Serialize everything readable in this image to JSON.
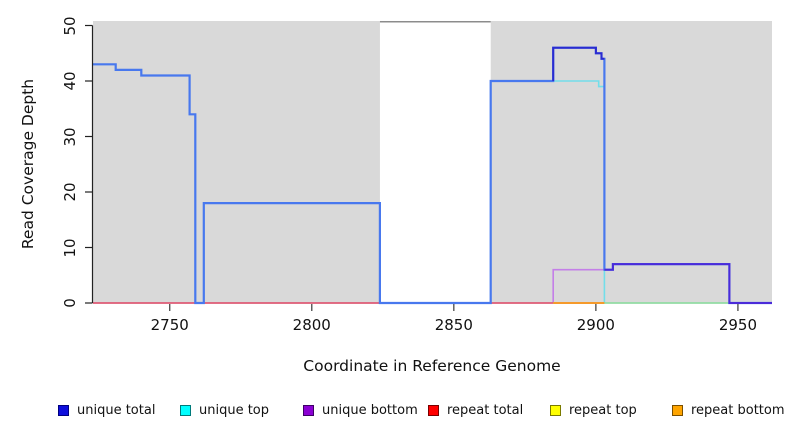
{
  "axes": {
    "x": {
      "label": "Coordinate in Reference Genome",
      "ticks": [
        2750,
        2800,
        2850,
        2900,
        2950
      ],
      "range": [
        2723,
        2962
      ]
    },
    "y": {
      "label": "Read Coverage Depth",
      "ticks": [
        0,
        10,
        20,
        30,
        40,
        50
      ],
      "range": [
        0,
        50.8
      ]
    }
  },
  "panel": {
    "bg_color": "#D9D9D9",
    "mask_band": {
      "from": 2824,
      "to": 2863,
      "color": "#FFFFFF",
      "top_border_color": "#8C8C8C"
    }
  },
  "chart_data": {
    "type": "line",
    "title": "",
    "xlabel": "Coordinate in Reference Genome",
    "ylabel": "Read Coverage Depth",
    "xlim": [
      2723,
      2962
    ],
    "ylim": [
      0,
      50.8
    ],
    "grid": false,
    "legend_position": "bottom",
    "series": [
      {
        "key": "unique_bottom",
        "name": "unique bottom",
        "line_color": "#C47FE8",
        "line_width": 1.6,
        "points": [
          [
            2723,
            0
          ],
          [
            2885,
            0
          ],
          [
            2885,
            6
          ],
          [
            2906,
            6
          ],
          [
            2906,
            7
          ],
          [
            2947,
            7
          ],
          [
            2947,
            0
          ],
          [
            2962,
            0
          ]
        ]
      },
      {
        "key": "unique_top",
        "name": "unique top",
        "line_color": "#72DEEA",
        "line_width": 1.6,
        "points": [
          [
            2723,
            43
          ],
          [
            2731,
            43
          ],
          [
            2731,
            42
          ],
          [
            2740,
            42
          ],
          [
            2740,
            41
          ],
          [
            2757,
            41
          ],
          [
            2757,
            34
          ],
          [
            2759,
            34
          ],
          [
            2759,
            0
          ],
          [
            2762,
            0
          ],
          [
            2762,
            18
          ],
          [
            2824,
            18
          ],
          [
            2824,
            0
          ],
          [
            2863,
            0
          ],
          [
            2863,
            40
          ],
          [
            2901,
            40
          ],
          [
            2901,
            39
          ],
          [
            2903,
            39
          ],
          [
            2903,
            0
          ],
          [
            2962,
            0
          ]
        ]
      },
      {
        "key": "repeat_top",
        "name": "repeat top",
        "line_color": "#98DB98",
        "line_width": 1.6,
        "points": [
          [
            2885,
            0
          ],
          [
            2947,
            0
          ]
        ]
      },
      {
        "key": "repeat_total",
        "name": "repeat total",
        "line_color": "#E25563",
        "line_width": 1.6,
        "segments": [
          [
            [
              2723,
              0
            ],
            [
              2824,
              0
            ]
          ],
          [
            [
              2863,
              0
            ],
            [
              2885,
              0
            ]
          ]
        ]
      },
      {
        "key": "repeat_bottom",
        "name": "repeat bottom",
        "line_color": "#F59A2B",
        "line_width": 2,
        "points": [
          [
            2885,
            0
          ],
          [
            2903,
            0
          ]
        ]
      },
      {
        "key": "unique_total",
        "name": "unique total",
        "line_color": "#4878EE",
        "line_width": 2.2,
        "points": [
          [
            2723,
            43
          ],
          [
            2731,
            43
          ],
          [
            2731,
            42
          ],
          [
            2740,
            42
          ],
          [
            2740,
            41
          ],
          [
            2757,
            41
          ],
          [
            2757,
            34
          ],
          [
            2759,
            34
          ],
          [
            2759,
            0
          ],
          [
            2762,
            0
          ],
          [
            2762,
            18
          ],
          [
            2824,
            18
          ],
          [
            2824,
            0
          ],
          [
            2863,
            0
          ],
          [
            2863,
            40
          ],
          [
            2885,
            40
          ],
          [
            2885,
            46
          ],
          [
            2900,
            46
          ],
          [
            2900,
            45
          ],
          [
            2902,
            45
          ],
          [
            2902,
            44
          ],
          [
            2903,
            44
          ],
          [
            2903,
            6
          ],
          [
            2906,
            6
          ],
          [
            2906,
            7
          ],
          [
            2947,
            7
          ],
          [
            2947,
            0
          ],
          [
            2962,
            0
          ]
        ],
        "overlays": [
          {
            "color": "#2B2BD0",
            "width": 2,
            "points": [
              [
                2885,
                40
              ],
              [
                2885,
                46
              ],
              [
                2900,
                46
              ],
              [
                2900,
                45
              ],
              [
                2902,
                45
              ],
              [
                2902,
                44
              ],
              [
                2903,
                44
              ]
            ]
          },
          {
            "color": "#4B2BD9",
            "width": 2,
            "points": [
              [
                2903,
                6
              ],
              [
                2906,
                6
              ],
              [
                2906,
                7
              ],
              [
                2947,
                7
              ],
              [
                2947,
                0
              ],
              [
                2962,
                0
              ]
            ]
          }
        ]
      }
    ]
  },
  "legend": {
    "items": [
      {
        "key": "unique_total",
        "label": "unique total",
        "fill": "#0E0EDC",
        "border": "#000080"
      },
      {
        "key": "unique_top",
        "label": "unique top",
        "fill": "#00FFFF",
        "border": "#007A7A"
      },
      {
        "key": "unique_bottom",
        "label": "unique bottom",
        "fill": "#8B00D3",
        "border": "#3D0066"
      },
      {
        "key": "repeat_total",
        "label": "repeat total",
        "fill": "#FF0000",
        "border": "#7A0000"
      },
      {
        "key": "repeat_top",
        "label": "repeat top",
        "fill": "#FFFF00",
        "border": "#7A7A00"
      },
      {
        "key": "repeat_bottom",
        "label": "repeat bottom",
        "fill": "#FFA500",
        "border": "#7A4F00"
      }
    ]
  }
}
